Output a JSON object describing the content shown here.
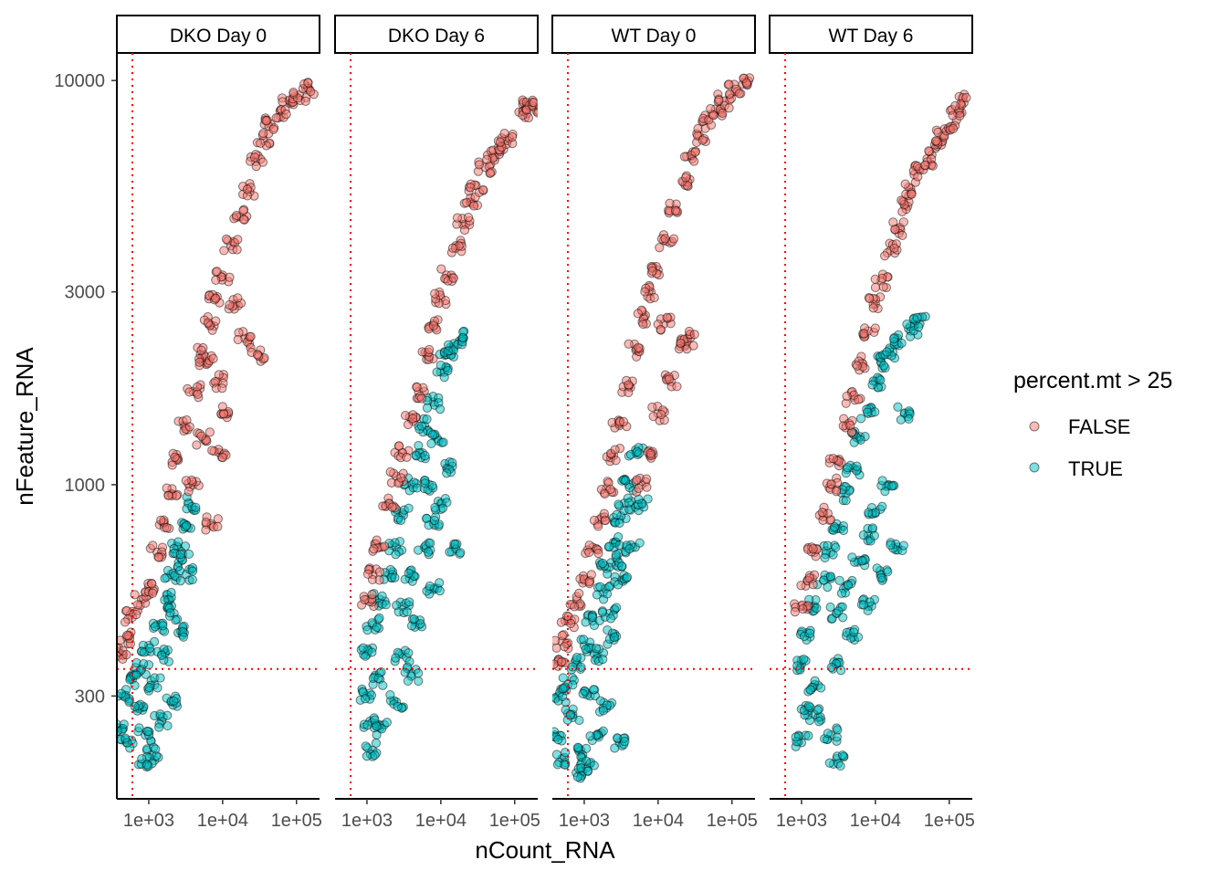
{
  "chart_data": {
    "type": "scatter",
    "xlabel": "nCount_RNA",
    "ylabel": "nFeature_RNA",
    "xscale": "log10",
    "yscale": "log10",
    "xlim": [
      370,
      205000
    ],
    "ylim": [
      167,
      11700
    ],
    "x_ticks": [
      {
        "value": 1000,
        "label": "1e+03"
      },
      {
        "value": 10000,
        "label": "1e+04"
      },
      {
        "value": 100000,
        "label": "1e+05"
      }
    ],
    "y_ticks": [
      {
        "value": 300,
        "label": "300"
      },
      {
        "value": 1000,
        "label": "1000"
      },
      {
        "value": 3000,
        "label": "3000"
      },
      {
        "value": 10000,
        "label": "10000"
      }
    ],
    "reference_lines": {
      "vertical_nCount": 600,
      "horizontal_nFeature": 350,
      "color": "#FF0000",
      "style": "dotted"
    },
    "legend": {
      "title": "percent.mt > 25",
      "placement": "right",
      "entries": [
        {
          "label": "FALSE",
          "color": "#F8766D"
        },
        {
          "label": "TRUE",
          "color": "#00BFC4"
        }
      ]
    },
    "grid": false,
    "facets": [
      {
        "label": "DKO Day 0",
        "series": [
          {
            "name": "FALSE",
            "points": [
              [
                450,
                380
              ],
              [
                500,
                420
              ],
              [
                600,
                470
              ],
              [
                800,
                520
              ],
              [
                1000,
                560
              ],
              [
                1300,
                680
              ],
              [
                1600,
                800
              ],
              [
                2000,
                950
              ],
              [
                2500,
                1150
              ],
              [
                3000,
                1400
              ],
              [
                4000,
                1700
              ],
              [
                5000,
                2100
              ],
              [
                6500,
                2500
              ],
              [
                8000,
                2900
              ],
              [
                10000,
                3300
              ],
              [
                13000,
                3900
              ],
              [
                17000,
                4600
              ],
              [
                22000,
                5400
              ],
              [
                28000,
                6300
              ],
              [
                36000,
                7100
              ],
              [
                45000,
                7800
              ],
              [
                60000,
                8400
              ],
              [
                80000,
                8900
              ],
              [
                110000,
                9200
              ],
              [
                150000,
                9500
              ],
              [
                4000,
                1000
              ],
              [
                5500,
                1300
              ],
              [
                7000,
                800
              ],
              [
                9000,
                1200
              ],
              [
                12000,
                1500
              ],
              [
                20000,
                2300
              ],
              [
                30000,
                2100
              ],
              [
                6000,
                2000
              ],
              [
                15000,
                2800
              ],
              [
                8500,
                1800
              ]
            ]
          },
          {
            "name": "TRUE",
            "points": [
              [
                400,
                250
              ],
              [
                450,
                300
              ],
              [
                500,
                230
              ],
              [
                600,
                330
              ],
              [
                700,
                280
              ],
              [
                800,
                350
              ],
              [
                900,
                240
              ],
              [
                1000,
                400
              ],
              [
                1200,
                320
              ],
              [
                1300,
                450
              ],
              [
                1500,
                380
              ],
              [
                1800,
                520
              ],
              [
                2000,
                600
              ],
              [
                2200,
                480
              ],
              [
                2500,
                700
              ],
              [
                2800,
                650
              ],
              [
                3000,
                800
              ],
              [
                3500,
                900
              ],
              [
                2000,
                290
              ],
              [
                1500,
                260
              ],
              [
                1100,
                215
              ],
              [
                900,
                205
              ],
              [
                2500,
                430
              ],
              [
                3200,
                600
              ]
            ]
          }
        ]
      },
      {
        "label": "DKO Day 6",
        "series": [
          {
            "name": "FALSE",
            "points": [
              [
                1000,
                520
              ],
              [
                1200,
                600
              ],
              [
                1500,
                700
              ],
              [
                2000,
                900
              ],
              [
                2500,
                1050
              ],
              [
                3000,
                1200
              ],
              [
                4000,
                1450
              ],
              [
                5000,
                1700
              ],
              [
                6500,
                2100
              ],
              [
                8000,
                2500
              ],
              [
                10000,
                2900
              ],
              [
                12000,
                3300
              ],
              [
                16000,
                3900
              ],
              [
                20000,
                4400
              ],
              [
                25000,
                5000
              ],
              [
                30000,
                5500
              ],
              [
                40000,
                6100
              ],
              [
                50000,
                6500
              ],
              [
                65000,
                6900
              ],
              [
                80000,
                7100
              ],
              [
                130000,
                8400
              ],
              [
                160000,
                8700
              ],
              [
                180000,
                8600
              ]
            ]
          },
          {
            "name": "TRUE",
            "points": [
              [
                1000,
                380
              ],
              [
                1200,
                450
              ],
              [
                1500,
                520
              ],
              [
                2000,
                600
              ],
              [
                2500,
                700
              ],
              [
                3000,
                850
              ],
              [
                4000,
                1000
              ],
              [
                5000,
                1200
              ],
              [
                6000,
                1400
              ],
              [
                8000,
                1600
              ],
              [
                10000,
                1900
              ],
              [
                12000,
                2100
              ],
              [
                15000,
                2200
              ],
              [
                20000,
                2300
              ],
              [
                3000,
                500
              ],
              [
                4000,
                600
              ],
              [
                6000,
                700
              ],
              [
                8000,
                800
              ],
              [
                10000,
                900
              ],
              [
                12000,
                1100
              ],
              [
                15000,
                700
              ],
              [
                1500,
                330
              ],
              [
                3000,
                380
              ],
              [
                8000,
                550
              ],
              [
                1200,
                220
              ],
              [
                1500,
                250
              ],
              [
                1100,
                260
              ],
              [
                2500,
                290
              ],
              [
                4000,
                340
              ],
              [
                1000,
                300
              ],
              [
                5000,
                450
              ],
              [
                7000,
                1000
              ],
              [
                9000,
                1300
              ]
            ]
          }
        ]
      },
      {
        "label": "WT Day 0",
        "series": [
          {
            "name": "FALSE",
            "points": [
              [
                450,
                370
              ],
              [
                500,
                410
              ],
              [
                600,
                460
              ],
              [
                800,
                520
              ],
              [
                1000,
                580
              ],
              [
                1300,
                700
              ],
              [
                1600,
                820
              ],
              [
                2000,
                980
              ],
              [
                2500,
                1180
              ],
              [
                3000,
                1400
              ],
              [
                4000,
                1750
              ],
              [
                5000,
                2150
              ],
              [
                6500,
                2600
              ],
              [
                8000,
                3000
              ],
              [
                10000,
                3400
              ],
              [
                13000,
                4000
              ],
              [
                17000,
                4800
              ],
              [
                22000,
                5600
              ],
              [
                28000,
                6500
              ],
              [
                36000,
                7300
              ],
              [
                45000,
                8000
              ],
              [
                60000,
                8500
              ],
              [
                80000,
                8900
              ],
              [
                110000,
                9400
              ],
              [
                140000,
                9800
              ],
              [
                10000,
                1500
              ],
              [
                15000,
                1800
              ],
              [
                20000,
                2200
              ],
              [
                8000,
                1200
              ],
              [
                12000,
                2500
              ],
              [
                25000,
                2300
              ],
              [
                6000,
                1000
              ]
            ]
          },
          {
            "name": "TRUE",
            "points": [
              [
                400,
                240
              ],
              [
                450,
                300
              ],
              [
                500,
                210
              ],
              [
                600,
                320
              ],
              [
                700,
                270
              ],
              [
                800,
                360
              ],
              [
                900,
                220
              ],
              [
                1000,
                400
              ],
              [
                1200,
                300
              ],
              [
                1300,
                460
              ],
              [
                1500,
                380
              ],
              [
                1800,
                540
              ],
              [
                2000,
                620
              ],
              [
                2200,
                480
              ],
              [
                2500,
                720
              ],
              [
                2800,
                650
              ],
              [
                3000,
                820
              ],
              [
                3500,
                900
              ],
              [
                4000,
                1000
              ],
              [
                5000,
                1200
              ],
              [
                2000,
                280
              ],
              [
                1500,
                240
              ],
              [
                1100,
                200
              ],
              [
                900,
                195
              ],
              [
                2500,
                420
              ],
              [
                3200,
                580
              ],
              [
                4500,
                700
              ],
              [
                6000,
                900
              ],
              [
                3000,
                230
              ]
            ]
          }
        ]
      },
      {
        "label": "WT Day 6",
        "series": [
          {
            "name": "FALSE",
            "points": [
              [
                1000,
                500
              ],
              [
                1200,
                580
              ],
              [
                1500,
                680
              ],
              [
                2000,
                850
              ],
              [
                2500,
                1000
              ],
              [
                3000,
                1150
              ],
              [
                4000,
                1400
              ],
              [
                5000,
                1650
              ],
              [
                6500,
                2000
              ],
              [
                8000,
                2400
              ],
              [
                10000,
                2800
              ],
              [
                12000,
                3200
              ],
              [
                16000,
                3800
              ],
              [
                20000,
                4300
              ],
              [
                25000,
                4900
              ],
              [
                30000,
                5400
              ],
              [
                40000,
                6000
              ],
              [
                50000,
                6400
              ],
              [
                65000,
                6800
              ],
              [
                80000,
                7300
              ],
              [
                110000,
                7700
              ],
              [
                130000,
                8300
              ],
              [
                150000,
                9000
              ]
            ]
          },
          {
            "name": "TRUE",
            "points": [
              [
                1000,
                360
              ],
              [
                1200,
                430
              ],
              [
                1500,
                500
              ],
              [
                2000,
                580
              ],
              [
                2500,
                680
              ],
              [
                3000,
                800
              ],
              [
                4000,
                950
              ],
              [
                5000,
                1100
              ],
              [
                6000,
                1300
              ],
              [
                8000,
                1500
              ],
              [
                10000,
                1800
              ],
              [
                12000,
                2000
              ],
              [
                15000,
                2100
              ],
              [
                20000,
                2300
              ],
              [
                30000,
                2400
              ],
              [
                40000,
                2500
              ],
              [
                3000,
                480
              ],
              [
                4000,
                560
              ],
              [
                6000,
                650
              ],
              [
                8000,
                750
              ],
              [
                10000,
                850
              ],
              [
                15000,
                1000
              ],
              [
                20000,
                700
              ],
              [
                1500,
                320
              ],
              [
                3000,
                360
              ],
              [
                8000,
                500
              ],
              [
                1000,
                230
              ],
              [
                1500,
                270
              ],
              [
                2500,
                240
              ],
              [
                3000,
                210
              ],
              [
                1200,
                280
              ],
              [
                5000,
                420
              ],
              [
                12000,
                600
              ],
              [
                25000,
                1500
              ]
            ]
          }
        ]
      }
    ]
  }
}
